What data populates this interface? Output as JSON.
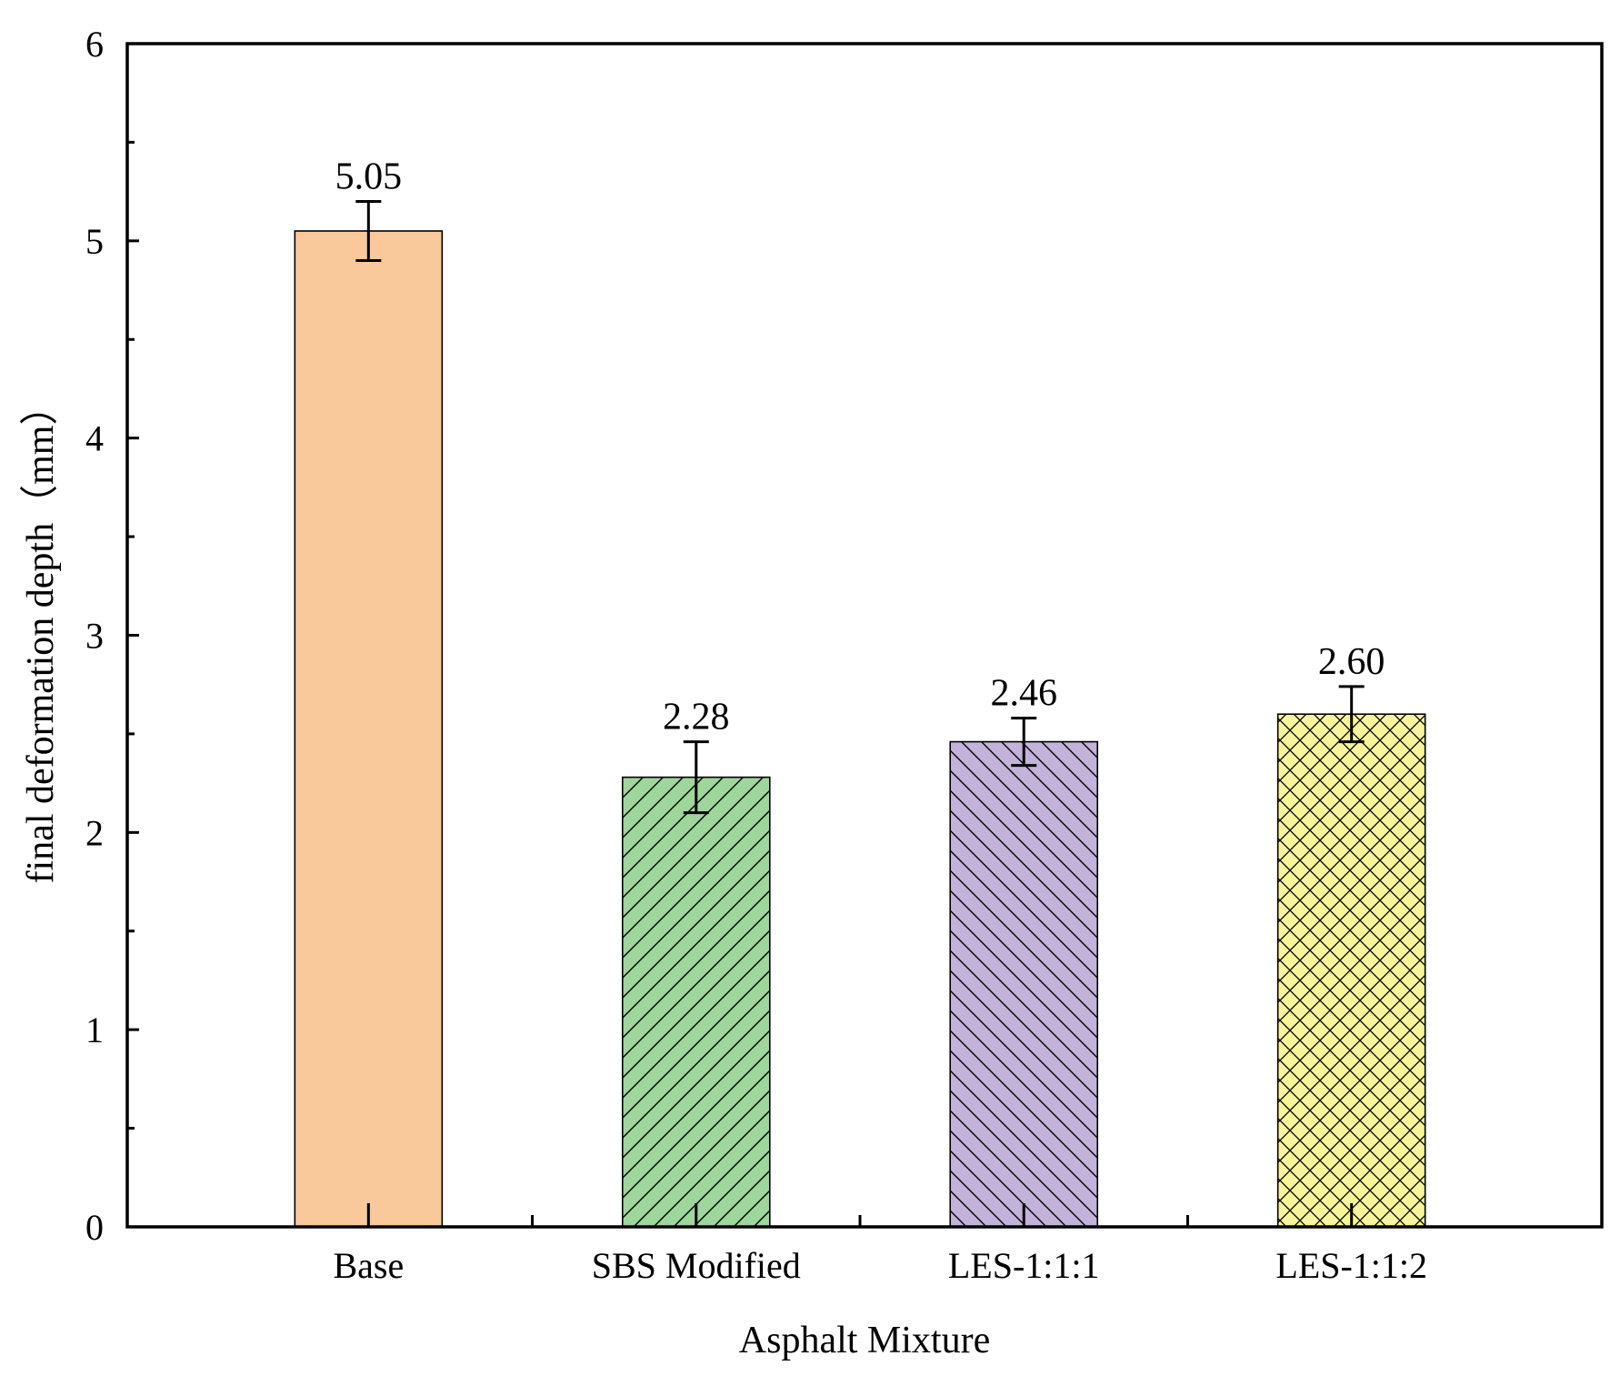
{
  "chart_data": {
    "type": "bar",
    "categories": [
      "Base",
      "SBS Modified",
      "LES-1:1:1",
      "LES-1:1:2"
    ],
    "values": [
      5.05,
      2.28,
      2.46,
      2.6
    ],
    "value_labels": [
      "5.05",
      "2.28",
      "2.46",
      "2.60"
    ],
    "error": [
      0.15,
      0.18,
      0.12,
      0.14
    ],
    "xlabel": "Asphalt Mixture",
    "ylabel": "final deformation depth（mm）",
    "ylim": [
      0,
      6
    ],
    "yticks": [
      0,
      1,
      2,
      3,
      4,
      5,
      6
    ],
    "grid": false,
    "legend": "none",
    "bar_styles": [
      {
        "fill": "#f9c89b",
        "pattern": "none"
      },
      {
        "fill": "#9fd69b",
        "pattern": "diagonal-up"
      },
      {
        "fill": "#c3b2d9",
        "pattern": "diagonal-down"
      },
      {
        "fill": "#f7f59b",
        "pattern": "crosshatch"
      }
    ]
  }
}
